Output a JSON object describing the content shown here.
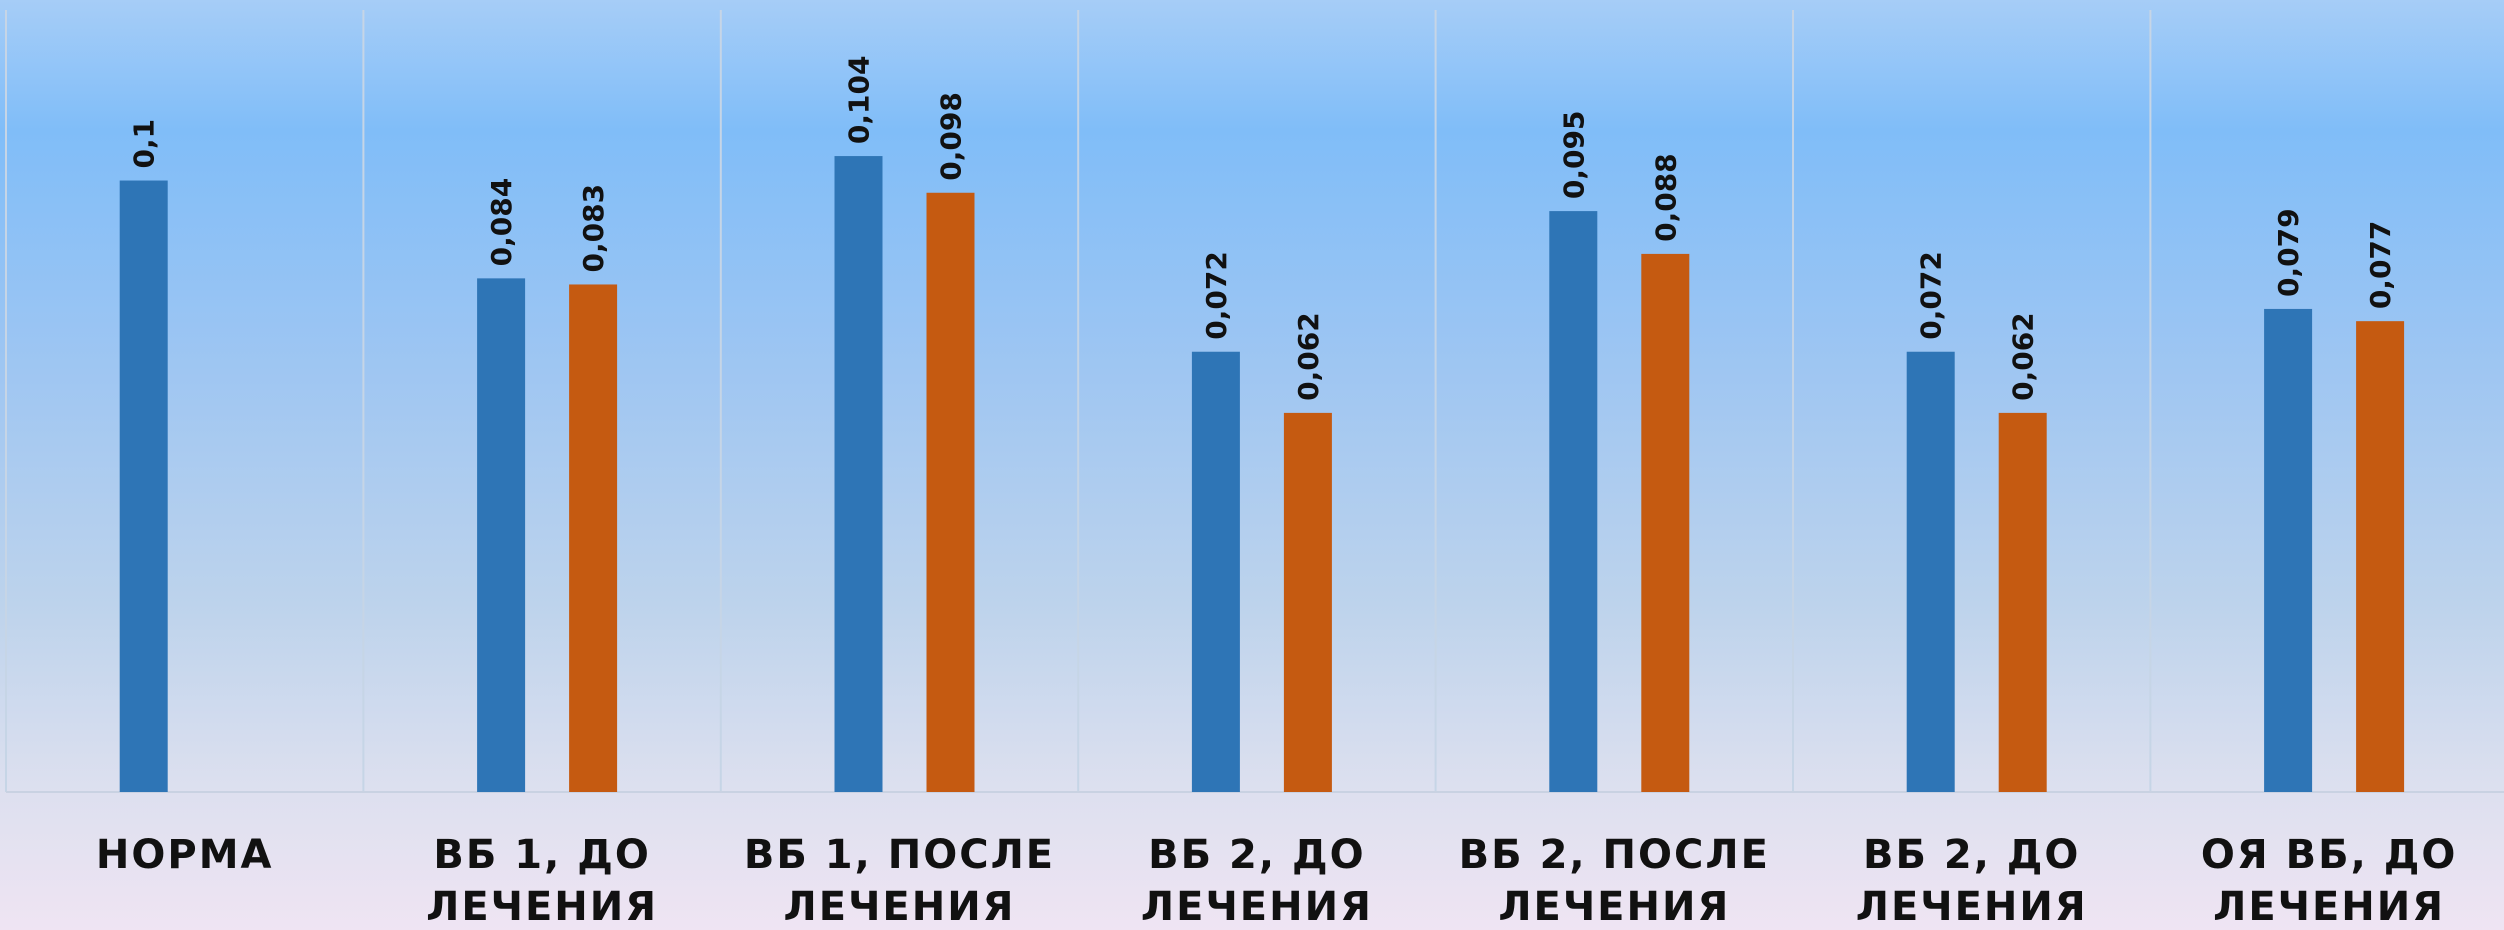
{
  "chart_data": {
    "type": "bar",
    "title": "",
    "xlabel": "",
    "ylabel": "",
    "ylim": [
      0,
      0.12
    ],
    "grid": false,
    "legend": "none",
    "categories": [
      [
        "НОРМА"
      ],
      [
        "ВБ 1, ДО",
        "ЛЕЧЕНИЯ"
      ],
      [
        "ВБ 1, ПОСЛЕ",
        "ЛЕЧЕНИЯ"
      ],
      [
        "ВБ 2, ДО",
        "ЛЕЧЕНИЯ"
      ],
      [
        "ВБ 2, ПОСЛЕ",
        "ЛЕЧЕНИЯ"
      ],
      [
        "ВБ 2, ДО",
        "ЛЕЧЕНИЯ"
      ],
      [
        "ОЯ ВБ, ДО",
        "ЛЕЧЕНИЯ"
      ]
    ],
    "series": [
      {
        "color": "#2e75b6",
        "values": [
          0.1,
          0.084,
          0.104,
          0.072,
          0.095,
          0.072,
          0.079
        ],
        "labels": [
          "0,1",
          "0,084",
          "0,104",
          "0,072",
          "0,095",
          "0,072",
          "0,079"
        ]
      },
      {
        "color": "#c55a11",
        "values": [
          null,
          0.083,
          0.098,
          0.062,
          0.088,
          0.062,
          0.077
        ],
        "labels": [
          null,
          "0,083",
          "0,098",
          "0,062",
          "0,088",
          "0,062",
          "0,077"
        ]
      }
    ]
  }
}
